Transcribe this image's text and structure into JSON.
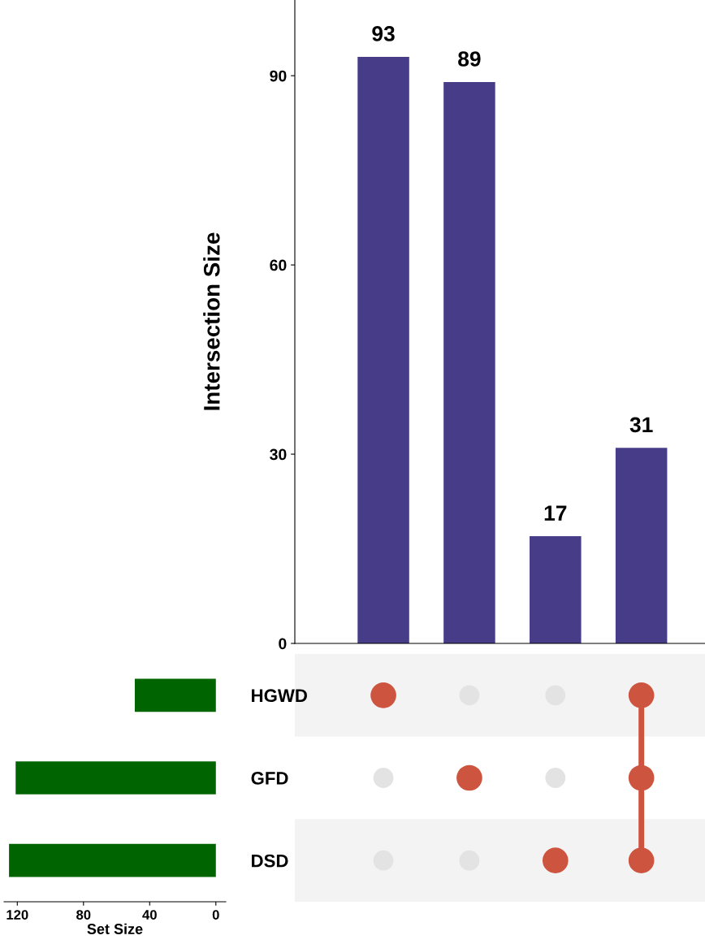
{
  "chart_data": [
    {
      "type": "bar",
      "ylabel": "Intersection Size",
      "categories": [
        null,
        null,
        null,
        null
      ],
      "values": [
        93,
        89,
        17,
        31
      ],
      "color": "#473c87",
      "data_labels": true,
      "ylim": [
        0,
        102
      ],
      "yticks": [
        0,
        30,
        60,
        90
      ],
      "grid": false,
      "tick_labels": "y"
    },
    {
      "type": "bar",
      "orientation": "horizontal",
      "xlabel": "Set Size",
      "categories": [
        "HGWD",
        "GFD",
        "DSD"
      ],
      "values": [
        49,
        121,
        125
      ],
      "color": "#006400",
      "xlim": [
        128,
        -6
      ],
      "xticks": [
        120,
        80,
        40,
        0
      ],
      "grid": false
    },
    {
      "type": "other",
      "categories": [
        null,
        null,
        null,
        null
      ],
      "y_categories": [
        null,
        null,
        null
      ],
      "cells": [
        [
          true,
          false,
          false,
          true
        ],
        [
          false,
          true,
          false,
          true
        ],
        [
          false,
          false,
          true,
          true
        ]
      ],
      "color": "#cd5540"
    }
  ]
}
